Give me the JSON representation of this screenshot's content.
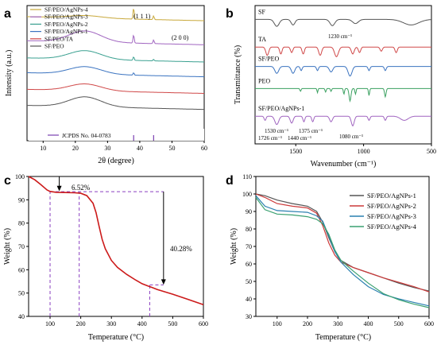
{
  "chart_data": [
    {
      "panel": "a",
      "type": "line",
      "xlabel": "2θ (degree)",
      "ylabel": "Intensity (a.u.)",
      "xlim": [
        5,
        60
      ],
      "xticks": [
        "10",
        "20",
        "30",
        "40",
        "50",
        "60"
      ],
      "legend_position": "top-left",
      "peak_labels": [
        "(1 1 1)",
        "(2 0 0)"
      ],
      "reference_label": "JCPDS No. 04-0783",
      "reference_lines": [
        38.1,
        44.3
      ],
      "series": [
        {
          "name": "SF/PEO/AgNPs-4",
          "color": "#c8a83a",
          "offset": 0.91,
          "amp": 0.02,
          "peaks": [
            [
              38.1,
              0.095
            ],
            [
              44.3,
              0.03
            ]
          ]
        },
        {
          "name": "SF/PEO/AgNPs-3",
          "color": "#a065c0",
          "offset": 0.715,
          "amp": 0.09,
          "peaks": [
            [
              38.1,
              0.07
            ],
            [
              44.3,
              0.03
            ]
          ]
        },
        {
          "name": "SF/PEO/AgNPs-2",
          "color": "#3aa090",
          "offset": 0.575,
          "amp": 0.07,
          "peaks": [
            [
              38.1,
              0.03
            ],
            [
              44.3,
              0.012
            ]
          ]
        },
        {
          "name": "SF/PEO/AgNPs-1",
          "color": "#3a73c0",
          "offset": 0.455,
          "amp": 0.06,
          "peaks": [
            [
              38.1,
              0.02
            ]
          ]
        },
        {
          "name": "SF/PEO/TA",
          "color": "#d04848",
          "offset": 0.32,
          "amp": 0.055,
          "peaks": []
        },
        {
          "name": "SF/PEO",
          "color": "#555555",
          "offset": 0.19,
          "amp": 0.08,
          "peaks": []
        }
      ]
    },
    {
      "panel": "b",
      "type": "line",
      "xlabel": "Wavenumber (cm⁻¹)",
      "ylabel": "Transmittance (%)",
      "xlim": [
        1800,
        500
      ],
      "xticks": [
        "1500",
        "1000",
        "500"
      ],
      "annotations": [
        "1230 cm⁻¹",
        "1726 cm⁻¹",
        "1530 cm⁻¹",
        "1440 cm⁻¹",
        "1375 cm⁻¹",
        "1080 cm⁻¹"
      ],
      "series": [
        {
          "name": "SF",
          "color": "#555555",
          "offset": 0.9
        },
        {
          "name": "TA",
          "color": "#d04848",
          "offset": 0.7
        },
        {
          "name": "SF/PEO",
          "color": "#3a73c0",
          "offset": 0.56
        },
        {
          "name": "PEO",
          "color": "#3aa060",
          "offset": 0.4
        },
        {
          "name": "SF/PEO/AgNPs-1",
          "color": "#a065c0",
          "offset": 0.2
        }
      ]
    },
    {
      "panel": "c",
      "type": "line",
      "xlabel": "Temperature (°C)",
      "ylabel": "Weight (%)",
      "xlim": [
        30,
        600
      ],
      "ylim": [
        40,
        100
      ],
      "xticks": [
        "100",
        "200",
        "300",
        "400",
        "500",
        "600"
      ],
      "yticks": [
        "40",
        "50",
        "60",
        "70",
        "80",
        "90",
        "100"
      ],
      "annotations": [
        "6.52%",
        "40.28%"
      ],
      "series": [
        {
          "name": "",
          "color": "#cc1a1a",
          "x": [
            30,
            50,
            70,
            90,
            100,
            120,
            150,
            180,
            200,
            220,
            240,
            250,
            260,
            270,
            280,
            300,
            320,
            350,
            380,
            400,
            420,
            430,
            450,
            500,
            550,
            600
          ],
          "y": [
            100,
            98.6,
            96.5,
            94.2,
            93.6,
            93.2,
            93.1,
            93.0,
            92.8,
            91.8,
            88.5,
            84.5,
            78.5,
            73,
            69,
            64,
            61,
            58,
            55.5,
            54,
            53,
            52.5,
            51.5,
            49.5,
            47.3,
            45
          ]
        }
      ]
    },
    {
      "panel": "d",
      "type": "line",
      "xlabel": "Temperature (°C)",
      "ylabel": "Weight (%)",
      "xlim": [
        30,
        600
      ],
      "ylim": [
        30,
        110
      ],
      "xticks": [
        "100",
        "200",
        "300",
        "400",
        "500",
        "600"
      ],
      "yticks": [
        "30",
        "40",
        "50",
        "60",
        "70",
        "80",
        "90",
        "100",
        "110"
      ],
      "legend_position": "top-right",
      "series": [
        {
          "name": "SF/PEO/AgNPs-1",
          "color": "#555555",
          "x": [
            30,
            60,
            100,
            150,
            200,
            230,
            250,
            270,
            290,
            310,
            350,
            400,
            450,
            500,
            550,
            600
          ],
          "y": [
            100,
            99,
            96.5,
            94.5,
            93,
            90,
            84,
            75,
            67,
            62,
            58,
            55,
            52,
            49,
            46.5,
            44.5
          ]
        },
        {
          "name": "SF/PEO/AgNPs-2",
          "color": "#cc3a3a",
          "x": [
            30,
            60,
            100,
            150,
            200,
            230,
            250,
            270,
            290,
            310,
            350,
            400,
            450,
            500,
            550,
            600
          ],
          "y": [
            100,
            98,
            94.5,
            93,
            92,
            89,
            82,
            72,
            65,
            61,
            58,
            55,
            52,
            49.5,
            47,
            44
          ]
        },
        {
          "name": "SF/PEO/AgNPs-3",
          "color": "#2a80b0",
          "x": [
            30,
            60,
            100,
            150,
            200,
            230,
            250,
            270,
            290,
            310,
            350,
            400,
            450,
            500,
            550,
            600
          ],
          "y": [
            99,
            93,
            90.5,
            90,
            89.5,
            87.5,
            84.5,
            76,
            67,
            61,
            54,
            47,
            42.5,
            40,
            38,
            36
          ]
        },
        {
          "name": "SF/PEO/AgNPs-4",
          "color": "#3aa070",
          "x": [
            30,
            60,
            100,
            150,
            200,
            230,
            250,
            270,
            290,
            310,
            350,
            400,
            450,
            500,
            550,
            600
          ],
          "y": [
            98,
            91,
            88.5,
            88,
            87,
            85.5,
            83,
            77,
            68,
            62,
            56,
            49,
            43,
            39.5,
            37,
            35
          ]
        }
      ]
    }
  ],
  "panel_labels": [
    "a",
    "b",
    "c",
    "d"
  ]
}
